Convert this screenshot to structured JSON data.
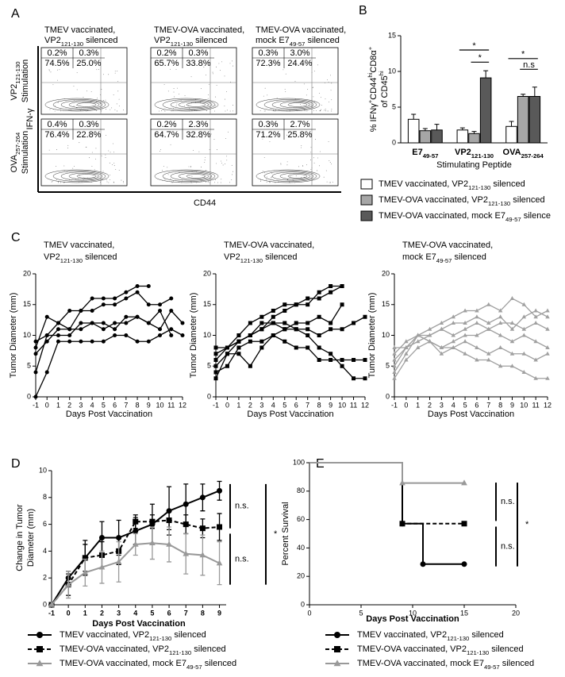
{
  "panel_labels": [
    "A",
    "B",
    "C",
    "D",
    "E"
  ],
  "flow": {
    "columns": [
      [
        "TMEV vaccinated,",
        [
          {
            "text": "VP2"
          },
          {
            "sub": "121-130"
          },
          {
            "text": " silenced"
          }
        ]
      ],
      [
        "TMEV-OVA vaccinated,",
        [
          {
            "text": "VP2"
          },
          {
            "sub": "121-130"
          },
          {
            "text": " silenced"
          }
        ]
      ],
      [
        "TMEV-OVA vaccinated,",
        [
          {
            "text": "mock E7"
          },
          {
            "sub": "49-57"
          },
          {
            "text": " silenced"
          }
        ]
      ]
    ],
    "rows": [
      [
        [
          {
            "text": "VP2"
          },
          {
            "sub": "121-130"
          }
        ],
        "Stimulation"
      ],
      [
        [
          {
            "text": "OVA"
          },
          {
            "sub": "257-264"
          }
        ],
        "Stimulation"
      ]
    ],
    "y_label": "IFN-γ",
    "x_label": "CD44",
    "quadrants": [
      [
        [
          "0.2%",
          "0.3%",
          "74.5%",
          "25.0%"
        ],
        [
          "0.2%",
          "0.3%",
          "65.7%",
          "33.8%"
        ],
        [
          "0.3%",
          "3.0%",
          "72.3%",
          "24.4%"
        ]
      ],
      [
        [
          "0.4%",
          "0.3%",
          "76.4%",
          "22.8%"
        ],
        [
          "0.2%",
          "2.3%",
          "64.7%",
          "32.8%"
        ],
        [
          "0.3%",
          "2.7%",
          "71.2%",
          "25.8%"
        ]
      ]
    ]
  },
  "chart_data": [
    {
      "type": "bar",
      "categories": [
        [
          {
            "text": "E7"
          },
          {
            "sub": "49-57"
          }
        ],
        [
          {
            "text": "VP2"
          },
          {
            "sub": "121-130"
          }
        ],
        [
          {
            "text": "OVA"
          },
          {
            "sub": "257-264"
          }
        ]
      ],
      "y_label": [
        {
          "text": "% IFNγ"
        },
        {
          "sup": "+"
        },
        {
          "text": "CD44"
        },
        {
          "sup": "hi"
        },
        {
          "text": "CD8α"
        },
        {
          "sup": "+"
        }
      ],
      "y_label_2": [
        {
          "text": "of CD45"
        },
        {
          "sup": "hi"
        }
      ],
      "x_label": "Stimulating Peptide",
      "ylim": [
        0,
        15
      ],
      "yticks": [
        0,
        5,
        10,
        15
      ],
      "series": [
        {
          "name": [
            {
              "text": "TMEV vaccinated, VP2"
            },
            {
              "sub": "121-130"
            },
            {
              "text": " silenced"
            }
          ],
          "color": "#ffffff",
          "values": [
            3.3,
            1.8,
            2.3
          ],
          "errors": [
            0.7,
            0.3,
            0.7
          ]
        },
        {
          "name": [
            {
              "text": "TMEV-OVA vaccinated, VP2"
            },
            {
              "sub": "121-130"
            },
            {
              "text": " silenced"
            }
          ],
          "color": "#a6a6a6",
          "values": [
            1.7,
            1.3,
            6.5
          ],
          "errors": [
            0.3,
            0.3,
            0.3
          ]
        },
        {
          "name": [
            {
              "text": "TMEV-OVA vaccinated, mock E7"
            },
            {
              "sub": "49-57"
            },
            {
              "text": " silence"
            }
          ],
          "color": "#595959",
          "values": [
            1.8,
            9.1,
            6.5
          ],
          "errors": [
            0.8,
            1.0,
            1.3
          ]
        }
      ],
      "annotations": [
        "*",
        "*",
        "*",
        "n.s"
      ]
    },
    {
      "type": "line",
      "title": [
        "TMEV vaccinated,",
        [
          {
            "text": "VP2"
          },
          {
            "sub": "121-130"
          },
          {
            "text": " silenced"
          }
        ]
      ],
      "y_label": "Tumor Diameter (mm)",
      "x_label": "Days Post Vaccination",
      "x": [
        -1,
        0,
        1,
        2,
        3,
        4,
        5,
        6,
        7,
        8,
        9,
        10,
        11,
        12
      ],
      "xlim": [
        -1,
        12
      ],
      "xticks": [
        -1,
        0,
        1,
        2,
        3,
        4,
        5,
        6,
        7,
        8,
        9,
        10,
        11,
        12
      ],
      "ylim": [
        0,
        20
      ],
      "yticks": [
        0,
        5,
        10,
        15,
        20
      ],
      "marker": "circle",
      "color": "#000000",
      "series": [
        {
          "values": [
            8,
            13,
            12,
            14,
            14,
            16,
            16,
            16,
            17,
            18,
            18,
            null,
            null,
            null
          ]
        },
        {
          "values": [
            9,
            10,
            12,
            11,
            14,
            14,
            15,
            15,
            16,
            17,
            15,
            15,
            16,
            null
          ]
        },
        {
          "values": [
            7,
            9,
            11,
            11,
            11,
            12,
            12,
            11,
            13,
            13,
            12,
            11,
            14,
            12
          ]
        },
        {
          "values": [
            4,
            10,
            10,
            10,
            12,
            12,
            11,
            12,
            12,
            13,
            12,
            14,
            10,
            null
          ]
        },
        {
          "values": [
            0,
            4,
            9,
            9,
            9,
            9,
            9,
            10,
            10,
            9,
            9,
            10,
            11,
            10
          ]
        }
      ]
    },
    {
      "type": "line",
      "title": [
        "TMEV-OVA vaccinated,",
        [
          {
            "text": "VP2"
          },
          {
            "sub": "121-130"
          },
          {
            "text": " silenced"
          }
        ]
      ],
      "y_label": "Tumor Diameter (mm)",
      "x_label": "Days Post Vaccination",
      "x": [
        -1,
        0,
        1,
        2,
        3,
        4,
        5,
        6,
        7,
        8,
        9,
        10,
        11,
        12
      ],
      "xlim": [
        -1,
        12
      ],
      "xticks": [
        -1,
        0,
        1,
        2,
        3,
        4,
        5,
        6,
        7,
        8,
        9,
        10,
        11,
        12
      ],
      "ylim": [
        0,
        20
      ],
      "yticks": [
        0,
        5,
        10,
        15,
        20
      ],
      "marker": "square",
      "color": "#000000",
      "series": [
        {
          "values": [
            8,
            8,
            10,
            12,
            13,
            14,
            15,
            15,
            15,
            17,
            18,
            18,
            null,
            null
          ]
        },
        {
          "values": [
            7,
            8,
            9,
            10,
            11,
            13,
            14,
            15,
            16,
            16,
            17,
            18,
            null,
            null
          ]
        },
        {
          "values": [
            6,
            8,
            9,
            10,
            12,
            12,
            12,
            11,
            11,
            10,
            11,
            11,
            12,
            13
          ]
        },
        {
          "values": [
            5,
            7,
            9,
            10,
            11,
            12,
            11,
            12,
            12,
            13,
            12,
            15,
            null,
            null
          ]
        },
        {
          "values": [
            4,
            5,
            8,
            9,
            9,
            10,
            9,
            8,
            8,
            6,
            6,
            6,
            6,
            6
          ]
        },
        {
          "values": [
            3,
            7,
            7,
            5,
            8,
            10,
            11,
            11,
            10,
            8,
            7,
            5,
            3,
            3
          ]
        }
      ]
    },
    {
      "type": "line",
      "title": [
        "TMEV-OVA vaccinated,",
        [
          {
            "text": "mock E7"
          },
          {
            "sub": "49-57"
          },
          {
            "text": " silenced"
          }
        ]
      ],
      "y_label": "Tumor Diameter (mm)",
      "x_label": "Days Post Vaccination",
      "x": [
        -1,
        0,
        1,
        2,
        3,
        4,
        5,
        6,
        7,
        8,
        9,
        10,
        11,
        12
      ],
      "xlim": [
        -1,
        12
      ],
      "xticks": [
        -1,
        0,
        1,
        2,
        3,
        4,
        5,
        6,
        7,
        8,
        9,
        10,
        11,
        12
      ],
      "ylim": [
        0,
        20
      ],
      "yticks": [
        0,
        5,
        10,
        15,
        20
      ],
      "marker": "triangle",
      "color": "#a0a0a0",
      "series": [
        {
          "values": [
            8,
            8,
            10,
            11,
            12,
            13,
            14,
            14,
            15,
            14,
            16,
            15,
            13,
            14
          ]
        },
        {
          "values": [
            7,
            9,
            10,
            10,
            11,
            12,
            12,
            13,
            12,
            13,
            11,
            13,
            14,
            13
          ]
        },
        {
          "values": [
            5,
            8,
            9,
            10,
            11,
            10,
            11,
            12,
            11,
            12,
            12,
            11,
            12,
            11
          ]
        },
        {
          "values": [
            6,
            8,
            10,
            9,
            8,
            9,
            10,
            10,
            11,
            10,
            9,
            10,
            9,
            8
          ]
        },
        {
          "values": [
            4,
            7,
            10,
            9,
            8,
            8,
            9,
            8,
            7,
            8,
            7,
            7,
            6,
            7
          ]
        },
        {
          "values": [
            3,
            6,
            8,
            9,
            7,
            8,
            7,
            6,
            6,
            5,
            5,
            4,
            3,
            3
          ]
        }
      ]
    },
    {
      "type": "errorline",
      "y_label": [
        "Change in Tumor",
        "Diameter (mm)"
      ],
      "x_label": "Days Post Vaccination",
      "x": [
        -1,
        0,
        1,
        2,
        3,
        4,
        5,
        6,
        7,
        8,
        9
      ],
      "xlim": [
        -1,
        9.4
      ],
      "xticks": [
        -1,
        0,
        1,
        2,
        3,
        4,
        5,
        6,
        7,
        8,
        9
      ],
      "ylim": [
        0,
        10
      ],
      "yticks": [
        0,
        2,
        4,
        6,
        8,
        10
      ],
      "series": [
        {
          "name": [
            {
              "text": "TMEV vaccinated, VP2"
            },
            {
              "sub": "121-130"
            },
            {
              "text": " silenced"
            }
          ],
          "color": "#000000",
          "marker": "circle",
          "dash": false,
          "values": [
            0,
            2,
            3.5,
            5,
            5,
            5.5,
            6,
            7,
            7.5,
            8,
            8.5
          ],
          "errors": [
            0,
            0.5,
            1.3,
            1.2,
            1.3,
            1,
            1.5,
            1.8,
            1.5,
            1,
            0.7
          ]
        },
        {
          "name": [
            {
              "text": "TMEV-OVA vaccinated, VP2"
            },
            {
              "sub": "121-130"
            },
            {
              "text": " silenced"
            }
          ],
          "color": "#000000",
          "marker": "square",
          "dash": true,
          "values": [
            0,
            1.5,
            3.5,
            3.7,
            4,
            6.2,
            6.2,
            6.3,
            6,
            5.7,
            5.8
          ],
          "errors": [
            0,
            0.8,
            1,
            1,
            1,
            0.5,
            0.5,
            0.7,
            0.7,
            0.7,
            1
          ]
        },
        {
          "name": [
            {
              "text": "TMEV-OVA vaccinated, mock E7"
            },
            {
              "sub": "49-57"
            },
            {
              "text": " silenced"
            }
          ],
          "color": "#999999",
          "marker": "triangle",
          "dash": false,
          "values": [
            0,
            1.5,
            2.4,
            2.8,
            3.2,
            4.5,
            4.6,
            4.5,
            3.8,
            3.7,
            3.1
          ],
          "errors": [
            0,
            1,
            1,
            1.2,
            1.5,
            0.8,
            1.2,
            1.3,
            1.5,
            1.5,
            1.6
          ]
        }
      ],
      "annotations": [
        "n.s.",
        "n.s.",
        "*"
      ]
    },
    {
      "type": "step",
      "y_label": "Percent Survival",
      "x_label": "Days Post Vaccination",
      "xlim": [
        0,
        20
      ],
      "xticks": [
        0,
        5,
        10,
        15,
        20
      ],
      "ylim": [
        0,
        100
      ],
      "yticks": [
        0,
        20,
        40,
        60,
        80,
        100
      ],
      "series": [
        {
          "name": [
            {
              "text": "TMEV vaccinated, VP2"
            },
            {
              "sub": "121-130"
            },
            {
              "text": " silenced"
            }
          ],
          "color": "#000000",
          "marker": "circle",
          "dash": false,
          "x": [
            0,
            9,
            11,
            15
          ],
          "values": [
            100,
            57.1,
            28.6,
            28.6
          ]
        },
        {
          "name": [
            {
              "text": "TMEV-OVA vaccinated, VP2"
            },
            {
              "sub": "121-130"
            },
            {
              "text": " silenced"
            }
          ],
          "color": "#000000",
          "marker": "square",
          "dash": true,
          "x": [
            0,
            9,
            15
          ],
          "values": [
            100,
            57.1,
            57.1
          ]
        },
        {
          "name": [
            {
              "text": "TMEV-OVA vaccinated, mock E7"
            },
            {
              "sub": "49-57"
            },
            {
              "text": " silenced"
            }
          ],
          "color": "#999999",
          "marker": "triangle",
          "dash": false,
          "x": [
            0,
            9,
            15
          ],
          "values": [
            100,
            85.7,
            85.7
          ]
        }
      ],
      "annotations": [
        "n.s.",
        "n.s.",
        "*"
      ]
    }
  ]
}
